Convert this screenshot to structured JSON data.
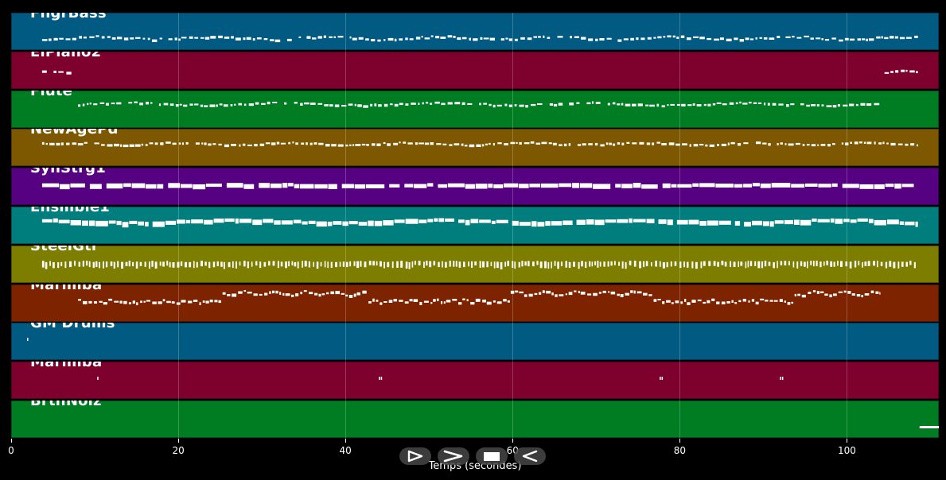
{
  "tracks": [
    {
      "name": "FngrBass",
      "color": "#005a82",
      "style": "dash",
      "ranges": [
        [
          3.7,
          108.5
        ]
      ]
    },
    {
      "name": "ElPiano2",
      "color": "#7d002d",
      "style": "dash",
      "ranges": [
        [
          3.7,
          7.5
        ],
        [
          104.5,
          108.5
        ]
      ]
    },
    {
      "name": "Flute",
      "color": "#007d23",
      "style": "dash",
      "ranges": [
        [
          8,
          104
        ]
      ]
    },
    {
      "name": "NewAgePd",
      "color": "#7d5800",
      "style": "dash",
      "ranges": [
        [
          3.7,
          108.5
        ]
      ]
    },
    {
      "name": "SynStrg1",
      "color": "#560082",
      "style": "thick",
      "ranges": [
        [
          3.7,
          108.5
        ]
      ]
    },
    {
      "name": "Ensmble1",
      "color": "#007d7d",
      "style": "block",
      "ranges": [
        [
          3.7,
          108.5
        ]
      ]
    },
    {
      "name": "SteelGtr",
      "color": "#7d7d00",
      "style": "ticks",
      "ranges": [
        [
          3.7,
          108.5
        ]
      ]
    },
    {
      "name": "Marimba",
      "color": "#7d2300",
      "style": "wave",
      "ranges": [
        [
          8,
          104
        ]
      ]
    },
    {
      "name": "GM Drums",
      "color": "#005a82",
      "style": "dots",
      "ranges": [
        [
          1.9,
          2.0
        ]
      ]
    },
    {
      "name": "Marimba",
      "color": "#7d002d",
      "style": "dots",
      "ranges": [
        [
          10.3,
          10.5
        ],
        [
          44,
          44.4
        ],
        [
          77.6,
          78
        ],
        [
          92,
          92.3
        ]
      ]
    },
    {
      "name": "BrthNoiz",
      "color": "#007d23",
      "style": "line",
      "ranges": [
        [
          108.7,
          111
        ]
      ]
    }
  ],
  "axis": {
    "xmax": 111,
    "ticks": [
      0,
      20,
      40,
      60,
      80,
      100
    ],
    "tick_labels": [
      "0",
      "20",
      "40",
      "60",
      "80",
      "100"
    ],
    "xlabel": "Temps (secondes)"
  },
  "controls": [
    {
      "icon": "play-icon"
    },
    {
      "icon": "forward-icon"
    },
    {
      "icon": "stop-icon"
    },
    {
      "icon": "rewind-icon"
    }
  ]
}
